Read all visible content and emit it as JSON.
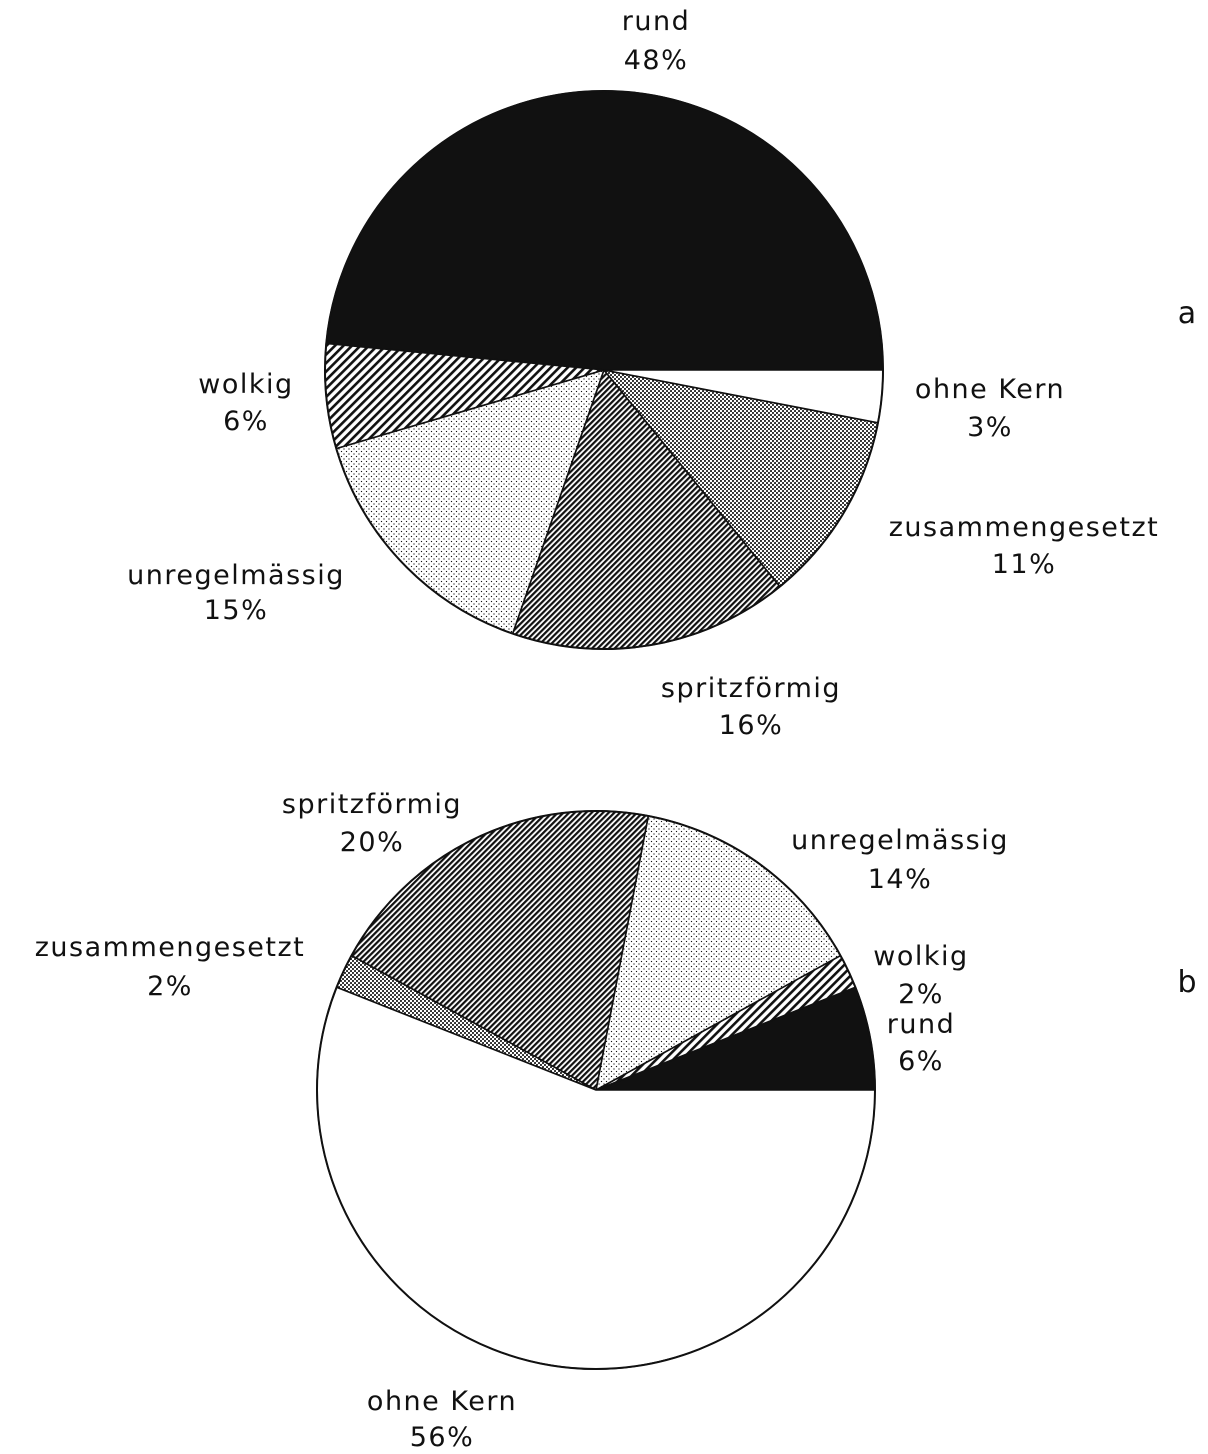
{
  "chart_data": [
    {
      "type": "pie",
      "panel_label": "a",
      "title": "",
      "start": "3 o'clock, counter-clockwise",
      "slices": [
        {
          "label": "rund",
          "percent_label": "48%",
          "value": 48,
          "pattern": "solid-black"
        },
        {
          "label": "wolkig",
          "percent_label": "6%",
          "value": 6,
          "pattern": "hatch-dense"
        },
        {
          "label": "unregelmässig",
          "percent_label": "15%",
          "value": 15,
          "pattern": "dots-light"
        },
        {
          "label": "spritzförmig",
          "percent_label": "16%",
          "value": 16,
          "pattern": "hatch-diagonal"
        },
        {
          "label": "zusammengesetzt",
          "percent_label": "11%",
          "value": 11,
          "pattern": "dots-dark"
        },
        {
          "label": "ohne Kern",
          "percent_label": "3%",
          "value": 3,
          "pattern": "white"
        }
      ]
    },
    {
      "type": "pie",
      "panel_label": "b",
      "title": "",
      "start": "3 o'clock, counter-clockwise",
      "slices": [
        {
          "label": "rund",
          "percent_label": "6%",
          "value": 6,
          "pattern": "solid-black"
        },
        {
          "label": "wolkig",
          "percent_label": "2%",
          "value": 2,
          "pattern": "hatch-dense"
        },
        {
          "label": "unregelmässig",
          "percent_label": "14%",
          "value": 14,
          "pattern": "dots-light"
        },
        {
          "label": "spritzförmig",
          "percent_label": "20%",
          "value": 20,
          "pattern": "hatch-diagonal"
        },
        {
          "label": "zusammengesetzt",
          "percent_label": "2%",
          "value": 2,
          "pattern": "dots-dark"
        },
        {
          "label": "ohne Kern",
          "percent_label": "56%",
          "value": 56,
          "pattern": "white"
        }
      ]
    }
  ],
  "colors": {
    "ink": "#111111",
    "background": "#ffffff"
  }
}
